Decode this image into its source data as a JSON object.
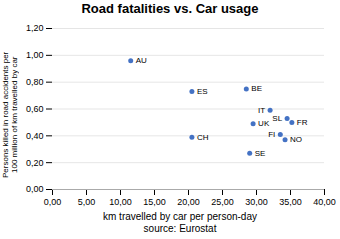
{
  "chart_data": {
    "type": "scatter",
    "title": "Road fatalities vs. Car usage",
    "xlabel": "km travelled by car per person-day",
    "caption": "source: Eurostat",
    "ylabel": "Persons killed in road accidents per\n100 million of km travelled by car",
    "x": [
      11.5,
      20.5,
      28.5,
      32.0,
      29.5,
      34.5,
      35.2,
      33.5,
      34.2,
      20.5,
      29.0
    ],
    "values": [
      0.96,
      0.73,
      0.75,
      0.59,
      0.49,
      0.53,
      0.5,
      0.41,
      0.37,
      0.39,
      0.27
    ],
    "point_labels": [
      "AU",
      "ES",
      "BE",
      "IT",
      "UK",
      "SL",
      "FR",
      "FI",
      "NO",
      "CH",
      "SE"
    ],
    "color": "#4472C4",
    "xlim": [
      0,
      40
    ],
    "ylim": [
      0.0,
      1.2
    ],
    "xticks": [
      {
        "value": 0,
        "label": "0,00"
      },
      {
        "value": 5,
        "label": "5,00"
      },
      {
        "value": 10,
        "label": "10,00"
      },
      {
        "value": 15,
        "label": "15,00"
      },
      {
        "value": 20,
        "label": "20,00"
      },
      {
        "value": 25,
        "label": "25,00"
      },
      {
        "value": 30,
        "label": "30,00"
      },
      {
        "value": 35,
        "label": "35,00"
      },
      {
        "value": 40,
        "label": "40,00"
      }
    ],
    "yticks": [
      {
        "value": 0.0,
        "label": "0,00"
      },
      {
        "value": 0.2,
        "label": "0,20"
      },
      {
        "value": 0.4,
        "label": "0,40"
      },
      {
        "value": 0.6,
        "label": "0,60"
      },
      {
        "value": 0.8,
        "label": "0,80"
      },
      {
        "value": 1.0,
        "label": "1,00"
      },
      {
        "value": 1.2,
        "label": "1,20"
      }
    ],
    "grid": "y"
  }
}
